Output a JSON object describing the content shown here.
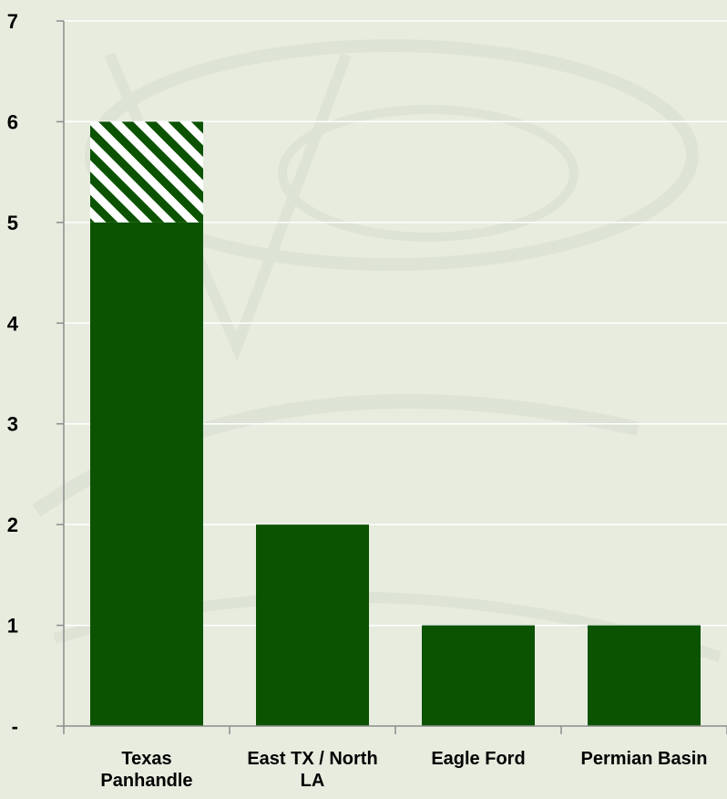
{
  "chart_data": {
    "type": "bar",
    "stacked": true,
    "categories": [
      [
        "Texas",
        "Panhandle"
      ],
      [
        "East TX / North",
        "LA"
      ],
      [
        "Eagle Ford"
      ],
      [
        "Permian Basin"
      ]
    ],
    "series": [
      {
        "values": [
          5,
          2,
          1,
          1
        ],
        "color": "#0b5300",
        "pattern": "solid"
      },
      {
        "values": [
          1,
          0,
          0,
          0
        ],
        "color": "#0b5300",
        "pattern": "diagonal-hatch"
      }
    ],
    "yticks": [
      "-",
      "1",
      "2",
      "3",
      "4",
      "5",
      "6",
      "7"
    ],
    "ylim": [
      0,
      7
    ],
    "grid": true,
    "gridline_color": "#ffffff",
    "axis_color": "#8c8c8c",
    "background_color": "#e7ecdf",
    "watermark_color": "#dde3d5"
  }
}
